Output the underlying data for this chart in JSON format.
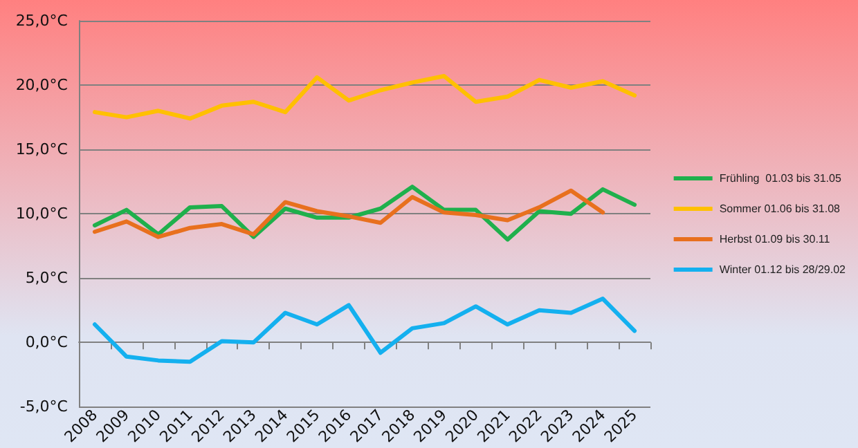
{
  "chart_data": {
    "type": "line",
    "categories": [
      "2008",
      "2009",
      "2010",
      "2011",
      "2012",
      "2013",
      "2014",
      "2015",
      "2016",
      "2017",
      "2018",
      "2019",
      "2020",
      "2021",
      "2022",
      "2023",
      "2024",
      "2025"
    ],
    "series": [
      {
        "name": "Frühling  01.03 bis 31.05",
        "color": "#1fb04c",
        "values": [
          9.1,
          10.3,
          8.4,
          10.5,
          10.6,
          8.2,
          10.4,
          9.7,
          9.7,
          10.4,
          12.1,
          10.3,
          10.3,
          8.0,
          10.2,
          10.0,
          11.9,
          10.7
        ]
      },
      {
        "name": "Sommer 01.06 bis 31.08",
        "color": "#ffc000",
        "values": [
          17.9,
          17.5,
          18.0,
          17.4,
          18.4,
          18.7,
          17.9,
          20.6,
          18.8,
          19.6,
          20.2,
          20.7,
          18.7,
          19.1,
          20.4,
          19.8,
          20.3,
          19.2
        ]
      },
      {
        "name": "Herbst 01.09 bis 30.11",
        "color": "#e8701e",
        "values": [
          8.6,
          9.4,
          8.2,
          8.9,
          9.2,
          8.4,
          10.9,
          10.2,
          9.8,
          9.3,
          11.3,
          10.1,
          9.9,
          9.5,
          10.5,
          11.8,
          10.1,
          null
        ]
      },
      {
        "name": "Winter 01.12 bis 28/29.02",
        "color": "#14b0ef",
        "values": [
          1.4,
          -1.1,
          -1.4,
          -1.5,
          0.1,
          0.0,
          2.3,
          1.4,
          2.9,
          -0.8,
          1.1,
          1.5,
          2.8,
          1.4,
          2.5,
          2.3,
          3.4,
          0.9
        ]
      }
    ],
    "ylim": [
      -5,
      25
    ],
    "yticks": [
      {
        "value": -5,
        "label": "-5,0°C"
      },
      {
        "value": 0,
        "label": "0,0°C"
      },
      {
        "value": 5,
        "label": "5,0°C"
      },
      {
        "value": 10,
        "label": "10,0°C"
      },
      {
        "value": 15,
        "label": "15,0°C"
      },
      {
        "value": 20,
        "label": "20,0°C"
      },
      {
        "value": 25,
        "label": "25,0°C"
      }
    ],
    "grid": "y",
    "legend": "right",
    "marker": "none",
    "line_style": "solid"
  }
}
